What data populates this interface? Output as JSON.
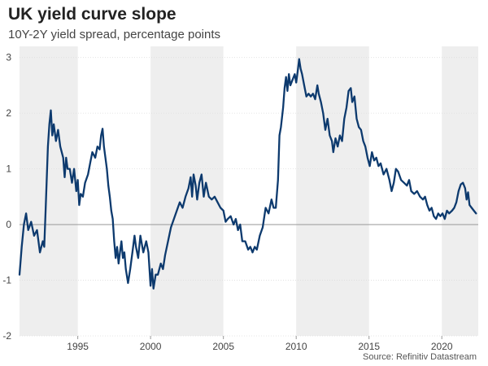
{
  "header": {
    "title": "UK yield curve slope",
    "subtitle": "10Y-2Y yield spread, percentage points"
  },
  "footer": {
    "source": "Source: Refinitiv Datastream"
  },
  "colors": {
    "line": "#0d3a6e",
    "shade": "#eeeeee",
    "zero": "#999999",
    "grid": "#dddddd"
  },
  "chart_data": {
    "type": "line",
    "title": "UK yield curve slope",
    "subtitle": "10Y-2Y yield spread, percentage points",
    "xlabel": "",
    "ylabel": "",
    "xlim": [
      1991,
      2022.5
    ],
    "ylim": [
      -2,
      3.2
    ],
    "x_ticks": [
      1995,
      2000,
      2005,
      2010,
      2015,
      2020
    ],
    "x_tick_labels": [
      "1995",
      "2000",
      "2005",
      "2010",
      "2015",
      "2020"
    ],
    "y_ticks": [
      3,
      2,
      1,
      0,
      -1,
      -2
    ],
    "y_tick_labels": [
      "3",
      "2",
      "1",
      "0",
      "-1",
      "-2"
    ],
    "shaded_periods": [
      [
        1991,
        1995
      ],
      [
        2000,
        2005
      ],
      [
        2010,
        2015
      ],
      [
        2020,
        2022.5
      ]
    ],
    "grid": "horizontal",
    "series": [
      {
        "name": "10Y-2Y yield spread",
        "points": [
          [
            1991.0,
            -0.9
          ],
          [
            1991.15,
            -0.4
          ],
          [
            1991.3,
            0.0
          ],
          [
            1991.45,
            0.2
          ],
          [
            1991.6,
            -0.1
          ],
          [
            1991.8,
            0.05
          ],
          [
            1992.0,
            -0.2
          ],
          [
            1992.2,
            -0.1
          ],
          [
            1992.4,
            -0.5
          ],
          [
            1992.6,
            -0.3
          ],
          [
            1992.7,
            -0.4
          ],
          [
            1992.8,
            0.3
          ],
          [
            1992.95,
            1.4
          ],
          [
            1993.05,
            1.8
          ],
          [
            1993.15,
            2.05
          ],
          [
            1993.25,
            1.6
          ],
          [
            1993.35,
            1.8
          ],
          [
            1993.5,
            1.5
          ],
          [
            1993.65,
            1.7
          ],
          [
            1993.8,
            1.4
          ],
          [
            1994.0,
            1.2
          ],
          [
            1994.1,
            0.85
          ],
          [
            1994.2,
            1.2
          ],
          [
            1994.3,
            1.0
          ],
          [
            1994.45,
            1.0
          ],
          [
            1994.6,
            0.75
          ],
          [
            1994.75,
            1.0
          ],
          [
            1994.9,
            0.6
          ],
          [
            1995.0,
            0.8
          ],
          [
            1995.1,
            0.35
          ],
          [
            1995.2,
            0.55
          ],
          [
            1995.35,
            0.5
          ],
          [
            1995.5,
            0.75
          ],
          [
            1995.7,
            0.9
          ],
          [
            1995.85,
            1.1
          ],
          [
            1996.0,
            1.3
          ],
          [
            1996.2,
            1.2
          ],
          [
            1996.35,
            1.4
          ],
          [
            1996.5,
            1.35
          ],
          [
            1996.6,
            1.6
          ],
          [
            1996.7,
            1.72
          ],
          [
            1996.8,
            1.4
          ],
          [
            1996.9,
            1.2
          ],
          [
            1997.0,
            1.0
          ],
          [
            1997.1,
            0.7
          ],
          [
            1997.2,
            0.5
          ],
          [
            1997.3,
            0.25
          ],
          [
            1997.4,
            0.1
          ],
          [
            1997.5,
            -0.3
          ],
          [
            1997.6,
            -0.6
          ],
          [
            1997.7,
            -0.4
          ],
          [
            1997.8,
            -0.7
          ],
          [
            1997.9,
            -0.5
          ],
          [
            1998.0,
            -0.3
          ],
          [
            1998.1,
            -0.6
          ],
          [
            1998.2,
            -0.5
          ],
          [
            1998.3,
            -0.8
          ],
          [
            1998.45,
            -1.05
          ],
          [
            1998.6,
            -0.8
          ],
          [
            1998.75,
            -0.5
          ],
          [
            1998.9,
            -0.2
          ],
          [
            1999.0,
            -0.4
          ],
          [
            1999.15,
            -0.6
          ],
          [
            1999.3,
            -0.2
          ],
          [
            1999.5,
            -0.5
          ],
          [
            1999.7,
            -0.3
          ],
          [
            1999.85,
            -0.5
          ],
          [
            2000.0,
            -1.1
          ],
          [
            2000.1,
            -0.8
          ],
          [
            2000.2,
            -1.15
          ],
          [
            2000.35,
            -0.9
          ],
          [
            2000.5,
            -0.9
          ],
          [
            2000.7,
            -0.7
          ],
          [
            2000.85,
            -0.8
          ],
          [
            2001.0,
            -0.55
          ],
          [
            2001.2,
            -0.3
          ],
          [
            2001.4,
            -0.05
          ],
          [
            2001.6,
            0.1
          ],
          [
            2001.8,
            0.25
          ],
          [
            2002.0,
            0.4
          ],
          [
            2002.2,
            0.3
          ],
          [
            2002.4,
            0.5
          ],
          [
            2002.6,
            0.65
          ],
          [
            2002.75,
            0.85
          ],
          [
            2002.85,
            0.5
          ],
          [
            2002.95,
            0.9
          ],
          [
            2003.1,
            0.7
          ],
          [
            2003.2,
            0.45
          ],
          [
            2003.35,
            0.75
          ],
          [
            2003.5,
            0.9
          ],
          [
            2003.65,
            0.5
          ],
          [
            2003.8,
            0.75
          ],
          [
            2004.0,
            0.5
          ],
          [
            2004.2,
            0.45
          ],
          [
            2004.4,
            0.5
          ],
          [
            2004.6,
            0.4
          ],
          [
            2004.8,
            0.3
          ],
          [
            2005.0,
            0.25
          ],
          [
            2005.15,
            0.05
          ],
          [
            2005.3,
            0.1
          ],
          [
            2005.5,
            0.15
          ],
          [
            2005.7,
            0.0
          ],
          [
            2005.85,
            0.1
          ],
          [
            2006.0,
            -0.1
          ],
          [
            2006.15,
            0.0
          ],
          [
            2006.3,
            -0.3
          ],
          [
            2006.5,
            -0.3
          ],
          [
            2006.7,
            -0.45
          ],
          [
            2006.85,
            -0.4
          ],
          [
            2007.0,
            -0.5
          ],
          [
            2007.15,
            -0.4
          ],
          [
            2007.3,
            -0.45
          ],
          [
            2007.5,
            -0.2
          ],
          [
            2007.7,
            -0.05
          ],
          [
            2007.9,
            0.3
          ],
          [
            2008.1,
            0.2
          ],
          [
            2008.3,
            0.45
          ],
          [
            2008.45,
            0.3
          ],
          [
            2008.6,
            0.3
          ],
          [
            2008.75,
            0.8
          ],
          [
            2008.85,
            1.6
          ],
          [
            2008.95,
            1.75
          ],
          [
            2009.1,
            2.1
          ],
          [
            2009.2,
            2.45
          ],
          [
            2009.3,
            2.65
          ],
          [
            2009.4,
            2.4
          ],
          [
            2009.5,
            2.7
          ],
          [
            2009.6,
            2.5
          ],
          [
            2009.75,
            2.6
          ],
          [
            2009.9,
            2.7
          ],
          [
            2010.0,
            2.55
          ],
          [
            2010.1,
            2.75
          ],
          [
            2010.2,
            2.97
          ],
          [
            2010.3,
            2.8
          ],
          [
            2010.4,
            2.7
          ],
          [
            2010.55,
            2.5
          ],
          [
            2010.7,
            2.3
          ],
          [
            2010.85,
            2.35
          ],
          [
            2011.0,
            2.3
          ],
          [
            2011.15,
            2.35
          ],
          [
            2011.3,
            2.25
          ],
          [
            2011.45,
            2.5
          ],
          [
            2011.55,
            2.35
          ],
          [
            2011.7,
            2.2
          ],
          [
            2011.85,
            2.0
          ],
          [
            2012.0,
            1.7
          ],
          [
            2012.15,
            1.9
          ],
          [
            2012.3,
            1.6
          ],
          [
            2012.45,
            1.5
          ],
          [
            2012.55,
            1.3
          ],
          [
            2012.7,
            1.55
          ],
          [
            2012.85,
            1.4
          ],
          [
            2013.0,
            1.6
          ],
          [
            2013.15,
            1.5
          ],
          [
            2013.3,
            1.9
          ],
          [
            2013.45,
            2.1
          ],
          [
            2013.6,
            2.4
          ],
          [
            2013.75,
            2.45
          ],
          [
            2013.85,
            2.2
          ],
          [
            2014.0,
            2.3
          ],
          [
            2014.15,
            1.9
          ],
          [
            2014.3,
            1.75
          ],
          [
            2014.45,
            1.7
          ],
          [
            2014.6,
            1.5
          ],
          [
            2014.75,
            1.4
          ],
          [
            2014.9,
            1.2
          ],
          [
            2015.05,
            1.05
          ],
          [
            2015.2,
            1.3
          ],
          [
            2015.35,
            1.15
          ],
          [
            2015.5,
            1.2
          ],
          [
            2015.65,
            1.05
          ],
          [
            2015.8,
            1.1
          ],
          [
            2016.0,
            0.9
          ],
          [
            2016.2,
            1.0
          ],
          [
            2016.4,
            0.8
          ],
          [
            2016.55,
            0.6
          ],
          [
            2016.7,
            0.75
          ],
          [
            2016.85,
            1.0
          ],
          [
            2017.0,
            0.95
          ],
          [
            2017.2,
            0.8
          ],
          [
            2017.4,
            0.75
          ],
          [
            2017.6,
            0.7
          ],
          [
            2017.75,
            0.8
          ],
          [
            2017.9,
            0.6
          ],
          [
            2018.1,
            0.55
          ],
          [
            2018.3,
            0.6
          ],
          [
            2018.5,
            0.5
          ],
          [
            2018.7,
            0.45
          ],
          [
            2018.85,
            0.5
          ],
          [
            2019.0,
            0.35
          ],
          [
            2019.15,
            0.25
          ],
          [
            2019.3,
            0.3
          ],
          [
            2019.45,
            0.15
          ],
          [
            2019.6,
            0.1
          ],
          [
            2019.75,
            0.2
          ],
          [
            2019.9,
            0.15
          ],
          [
            2020.05,
            0.2
          ],
          [
            2020.2,
            0.1
          ],
          [
            2020.35,
            0.25
          ],
          [
            2020.5,
            0.2
          ],
          [
            2020.7,
            0.25
          ],
          [
            2020.85,
            0.3
          ],
          [
            2021.0,
            0.4
          ],
          [
            2021.15,
            0.6
          ],
          [
            2021.3,
            0.72
          ],
          [
            2021.45,
            0.75
          ],
          [
            2021.6,
            0.65
          ],
          [
            2021.7,
            0.45
          ],
          [
            2021.8,
            0.58
          ],
          [
            2021.9,
            0.35
          ],
          [
            2022.05,
            0.3
          ],
          [
            2022.2,
            0.25
          ],
          [
            2022.35,
            0.2
          ]
        ]
      }
    ]
  }
}
